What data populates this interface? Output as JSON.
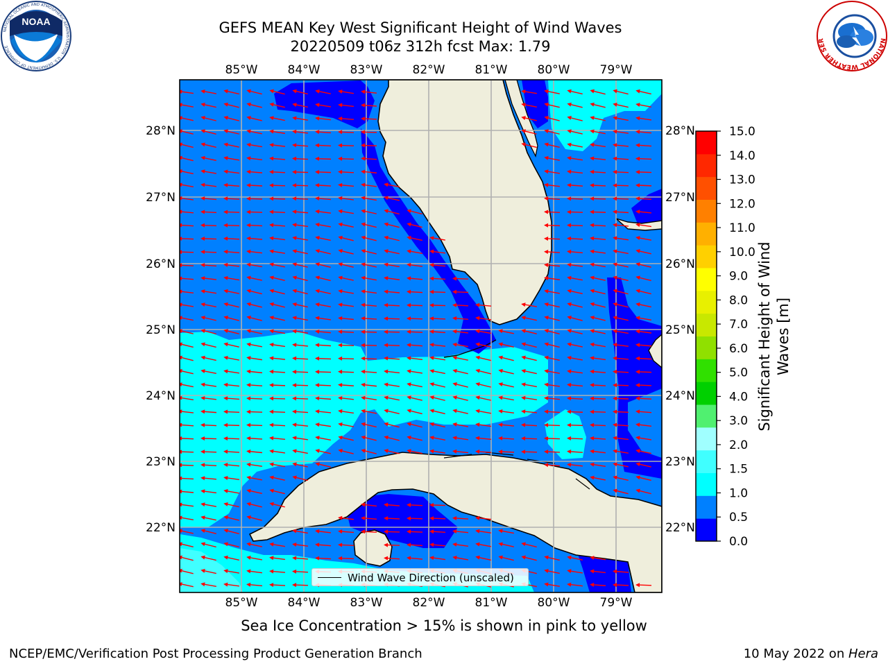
{
  "header": {
    "title_line1": "GEFS MEAN Key West Significant Height of Wind Waves",
    "title_line2": "20220509 t06z 312h fcst   Max: 1.79"
  },
  "map": {
    "lon_ticks": [
      "85°W",
      "84°W",
      "83°W",
      "82°W",
      "81°W",
      "80°W",
      "79°W"
    ],
    "lat_ticks": [
      "28°N",
      "27°N",
      "26°N",
      "25°N",
      "24°N",
      "23°N",
      "22°N"
    ],
    "legend_label": "Wind Wave Direction (unscaled)",
    "arrow_color": "#ff0000",
    "land_color": "#efeedc",
    "arrow_direction": "toward west / west-southwest"
  },
  "colorbar": {
    "label_line1": "Significant Height of Wind",
    "label_line2": "Waves [m]",
    "ticks": [
      "15.0",
      "14.0",
      "13.0",
      "12.0",
      "11.0",
      "10.0",
      "9.0",
      "8.0",
      "7.0",
      "6.0",
      "5.0",
      "4.0",
      "3.0",
      "2.0",
      "1.5",
      "1.0",
      "0.5",
      "0.0"
    ],
    "colors": [
      "#0000ff",
      "#0080ff",
      "#00ffff",
      "#40ffff",
      "#a0ffff",
      "#50f070",
      "#00d000",
      "#30e000",
      "#90e000",
      "#c8e800",
      "#e8f000",
      "#ffff00",
      "#ffd000",
      "#ffb000",
      "#ff8000",
      "#ff5000",
      "#ff2800",
      "#ff0000"
    ]
  },
  "logos": {
    "noaa_text": "NOAA",
    "noaa_ring": "NATIONAL OCEANIC AND ATMOSPHERIC ADMINISTRATION · U.S. DEPARTMENT OF COMMERCE",
    "nws_ring": "NATIONAL WEATHER SERVICE"
  },
  "footer": {
    "sea_ice_note": "Sea Ice Concentration > 15% is shown in pink to yellow",
    "left": "NCEP/EMC/Verification Post Processing Product Generation Branch",
    "right_date": "10 May 2022 on ",
    "right_host": "Hera"
  }
}
